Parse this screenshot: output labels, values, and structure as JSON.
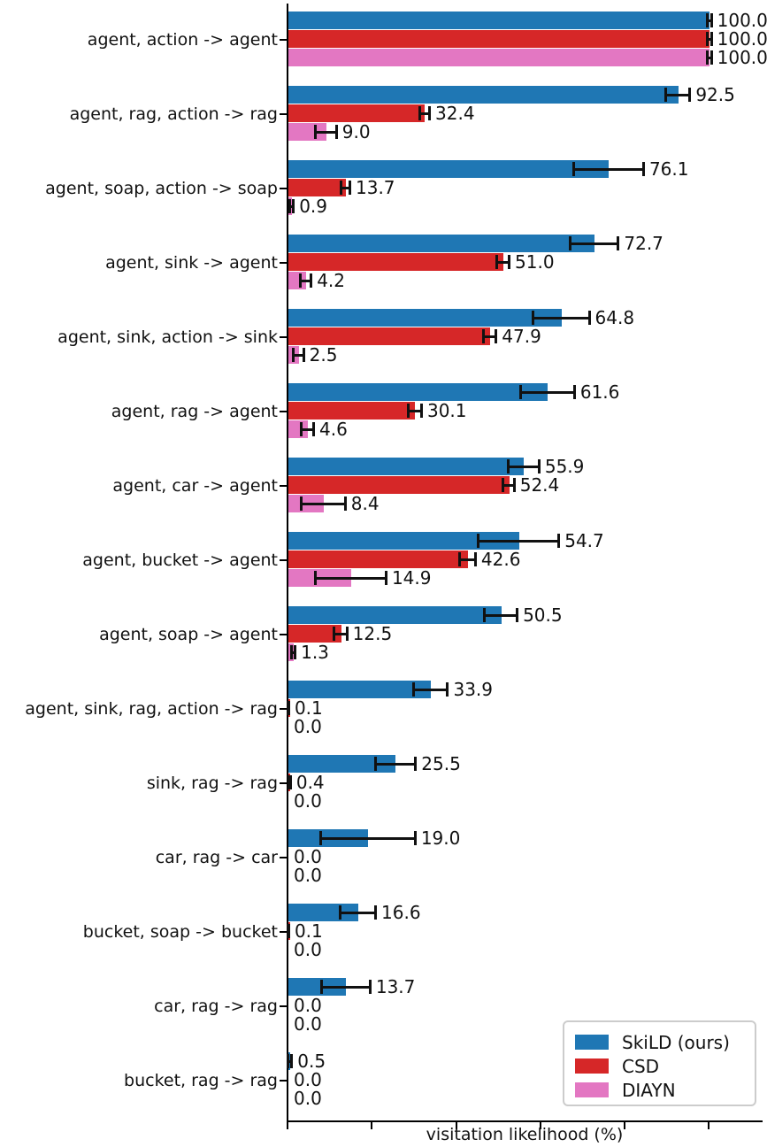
{
  "chart_data": {
    "type": "bar",
    "orientation": "horizontal",
    "title": "",
    "xlabel": "visitation likelihood (%)",
    "ylabel": "",
    "xlim": [
      0,
      113
    ],
    "xticks": [
      0,
      20,
      40,
      60,
      80,
      100
    ],
    "xtick_labels_visible": false,
    "grid": false,
    "legend_position": "lower right",
    "error_bars": true,
    "value_labels": "one decimal, right of error bar",
    "categories": [
      "agent, action -> agent",
      "agent, rag, action -> rag",
      "agent, soap, action -> soap",
      "agent, sink -> agent",
      "agent, sink, action -> sink",
      "agent, rag -> agent",
      "agent, car -> agent",
      "agent, bucket -> agent",
      "agent, soap -> agent",
      "agent, sink, rag, action -> rag",
      "sink, rag -> rag",
      "car, rag -> car",
      "bucket, soap -> bucket",
      "car, rag -> rag",
      "bucket, rag -> rag"
    ],
    "series": [
      {
        "name": "SkiLD (ours)",
        "key": "skild",
        "color": "#1f77b4",
        "values": [
          100.0,
          92.5,
          76.1,
          72.7,
          64.8,
          61.6,
          55.9,
          54.7,
          50.5,
          33.9,
          25.5,
          19.0,
          16.6,
          13.7,
          0.5
        ],
        "errors": [
          0.5,
          2.9,
          8.3,
          5.7,
          6.7,
          6.4,
          3.7,
          9.6,
          3.9,
          4.0,
          4.8,
          11.2,
          4.2,
          5.8,
          0.4
        ]
      },
      {
        "name": "CSD",
        "key": "csd",
        "color": "#d62728",
        "values": [
          100.0,
          32.4,
          13.7,
          51.0,
          47.9,
          30.1,
          52.4,
          42.6,
          12.5,
          0.1,
          0.4,
          0.0,
          0.1,
          0.0,
          0.0
        ],
        "errors": [
          0.5,
          1.2,
          1.0,
          1.5,
          1.5,
          1.6,
          1.3,
          1.9,
          1.5,
          0.1,
          0.2,
          0.0,
          0.1,
          0.0,
          0.0
        ]
      },
      {
        "name": "DIAYN",
        "key": "diayn",
        "color": "#e377c2",
        "values": [
          100.0,
          9.0,
          0.9,
          4.2,
          2.5,
          4.6,
          8.4,
          14.9,
          1.3,
          0.0,
          0.0,
          0.0,
          0.0,
          0.0,
          0.0
        ],
        "errors": [
          0.5,
          2.5,
          0.4,
          1.3,
          1.2,
          1.5,
          5.2,
          8.4,
          0.4,
          0.0,
          0.0,
          0.0,
          0.0,
          0.0,
          0.0
        ]
      }
    ],
    "colors": {
      "axis": "#000000",
      "text": "#111111",
      "error_bar": "#111111",
      "legend_border": "#cccccc",
      "background": "#ffffff"
    }
  }
}
